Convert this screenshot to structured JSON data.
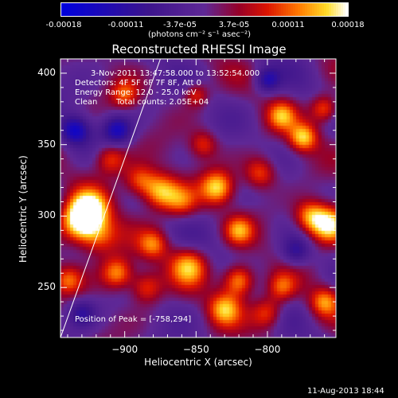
{
  "chart_data": {
    "type": "heatmap",
    "title": "Reconstructed RHESSI Image",
    "xlabel": "Heliocentric X (arcsec)",
    "ylabel": "Heliocentric Y (arcsec)",
    "xlim": [
      -945,
      -752
    ],
    "ylim": [
      215,
      410
    ],
    "x_ticks": [
      -900,
      -850,
      -800
    ],
    "y_ticks": [
      250,
      300,
      350,
      400
    ],
    "colorbar": {
      "ticks": [
        "-0.00018",
        "-0.00011",
        "-3.7e-05",
        "3.7e-05",
        "0.00011",
        "0.00018"
      ],
      "unit_text": "(photons cm⁻² s⁻¹ asec⁻²)",
      "range": [
        -0.00018,
        0.00018
      ]
    },
    "annotations": {
      "time_range": "3-Nov-2011 13:47:58.000 to 13:52:54.000",
      "detectors": "Detectors: 4F 5F 6F 7F 8F, Att 0",
      "energy_range": "Energy Range: 12.0 - 25.0 keV",
      "method": "Clean",
      "total_counts": "Total counts: 2.05E+04",
      "peak": "Position of Peak = [-758,294]"
    },
    "peak_position": [
      -758,
      294
    ],
    "limb_line": [
      [
        -945,
        215
      ],
      [
        -875,
        410
      ]
    ],
    "sources": [
      {
        "x": -932,
        "y": 295,
        "amp": 1.0,
        "r": 10
      },
      {
        "x": -925,
        "y": 305,
        "amp": 0.9,
        "r": 9
      },
      {
        "x": -918,
        "y": 285,
        "amp": 0.6,
        "r": 10
      },
      {
        "x": -875,
        "y": 317,
        "amp": 0.9,
        "r": 9
      },
      {
        "x": -860,
        "y": 310,
        "amp": 0.5,
        "r": 8
      },
      {
        "x": -757,
        "y": 294,
        "amp": 1.0,
        "r": 9
      },
      {
        "x": -770,
        "y": 300,
        "amp": 0.7,
        "r": 8
      },
      {
        "x": -905,
        "y": 260,
        "amp": 0.8,
        "r": 8
      },
      {
        "x": -885,
        "y": 250,
        "amp": 0.6,
        "r": 8
      },
      {
        "x": -855,
        "y": 265,
        "amp": 0.7,
        "r": 9
      },
      {
        "x": -820,
        "y": 255,
        "amp": 0.9,
        "r": 8
      },
      {
        "x": -830,
        "y": 235,
        "amp": 0.7,
        "r": 8
      },
      {
        "x": -800,
        "y": 232,
        "amp": 0.6,
        "r": 8
      },
      {
        "x": -790,
        "y": 250,
        "amp": 0.5,
        "r": 7
      },
      {
        "x": -910,
        "y": 340,
        "amp": 0.6,
        "r": 8
      },
      {
        "x": -890,
        "y": 325,
        "amp": 0.6,
        "r": 8
      },
      {
        "x": -835,
        "y": 320,
        "amp": 0.8,
        "r": 8
      },
      {
        "x": -805,
        "y": 330,
        "amp": 0.6,
        "r": 8
      },
      {
        "x": -845,
        "y": 350,
        "amp": 0.5,
        "r": 7
      },
      {
        "x": -775,
        "y": 355,
        "amp": 0.8,
        "r": 7
      },
      {
        "x": -760,
        "y": 375,
        "amp": 0.7,
        "r": 7
      },
      {
        "x": -790,
        "y": 370,
        "amp": 0.6,
        "r": 7
      },
      {
        "x": -850,
        "y": 385,
        "amp": 0.5,
        "r": 6
      },
      {
        "x": -900,
        "y": 385,
        "amp": 0.5,
        "r": 7
      },
      {
        "x": -820,
        "y": 290,
        "amp": 0.6,
        "r": 7
      },
      {
        "x": -880,
        "y": 280,
        "amp": 0.5,
        "r": 7
      },
      {
        "x": -940,
        "y": 255,
        "amp": 0.5,
        "r": 7
      },
      {
        "x": -760,
        "y": 240,
        "amp": 0.6,
        "r": 7
      },
      {
        "x": -905,
        "y": 360,
        "amp": -0.7,
        "r": 7
      },
      {
        "x": -935,
        "y": 360,
        "amp": -0.8,
        "r": 7
      },
      {
        "x": -800,
        "y": 395,
        "amp": -0.6,
        "r": 6
      },
      {
        "x": -780,
        "y": 275,
        "amp": -0.5,
        "r": 7
      },
      {
        "x": -930,
        "y": 232,
        "amp": -0.5,
        "r": 7
      }
    ]
  },
  "footer": {
    "timestamp": "11-Aug-2013 18:44"
  }
}
